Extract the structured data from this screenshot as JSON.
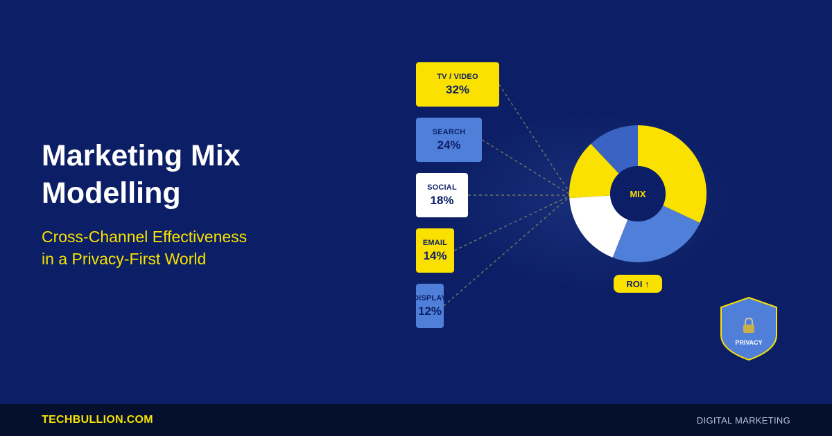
{
  "headline": {
    "title_line1": "Marketing Mix",
    "title_line2": "Modelling",
    "subtitle_line1": "Cross-Channel Effectiveness",
    "subtitle_line2": "in a Privacy-First World"
  },
  "channels": [
    {
      "name": "TV / VIDEO",
      "pct": "32%",
      "color": "#fae100"
    },
    {
      "name": "SEARCH",
      "pct": "24%",
      "color": "#4f7fd9"
    },
    {
      "name": "SOCIAL",
      "pct": "18%",
      "color": "#ffffff"
    },
    {
      "name": "EMAIL",
      "pct": "14%",
      "color": "#fae100"
    },
    {
      "name": "DISPLAY",
      "pct": "12%",
      "color": "#4f7fd9"
    }
  ],
  "donut": {
    "center_label": "MIX",
    "segments": [
      {
        "channel": "TV / VIDEO",
        "value": 32,
        "color": "#fae100"
      },
      {
        "channel": "SEARCH",
        "value": 24,
        "color": "#4f7fd9"
      },
      {
        "channel": "SOCIAL",
        "value": 18,
        "color": "#ffffff"
      },
      {
        "channel": "EMAIL",
        "value": 14,
        "color": "#fae100"
      },
      {
        "channel": "DISPLAY",
        "value": 12,
        "color": "#3a63c4"
      }
    ]
  },
  "roi_badge": "ROI ↑",
  "privacy_badge": {
    "label": "PRIVACY",
    "icon": "lock-icon"
  },
  "footer": {
    "brand": "TECHBULLION.COM",
    "category": "DIGITAL MARKETING"
  },
  "colors": {
    "background": "#0c1f66",
    "accent": "#fae100",
    "blue": "#4f7fd9",
    "footer": "#050f2e"
  }
}
